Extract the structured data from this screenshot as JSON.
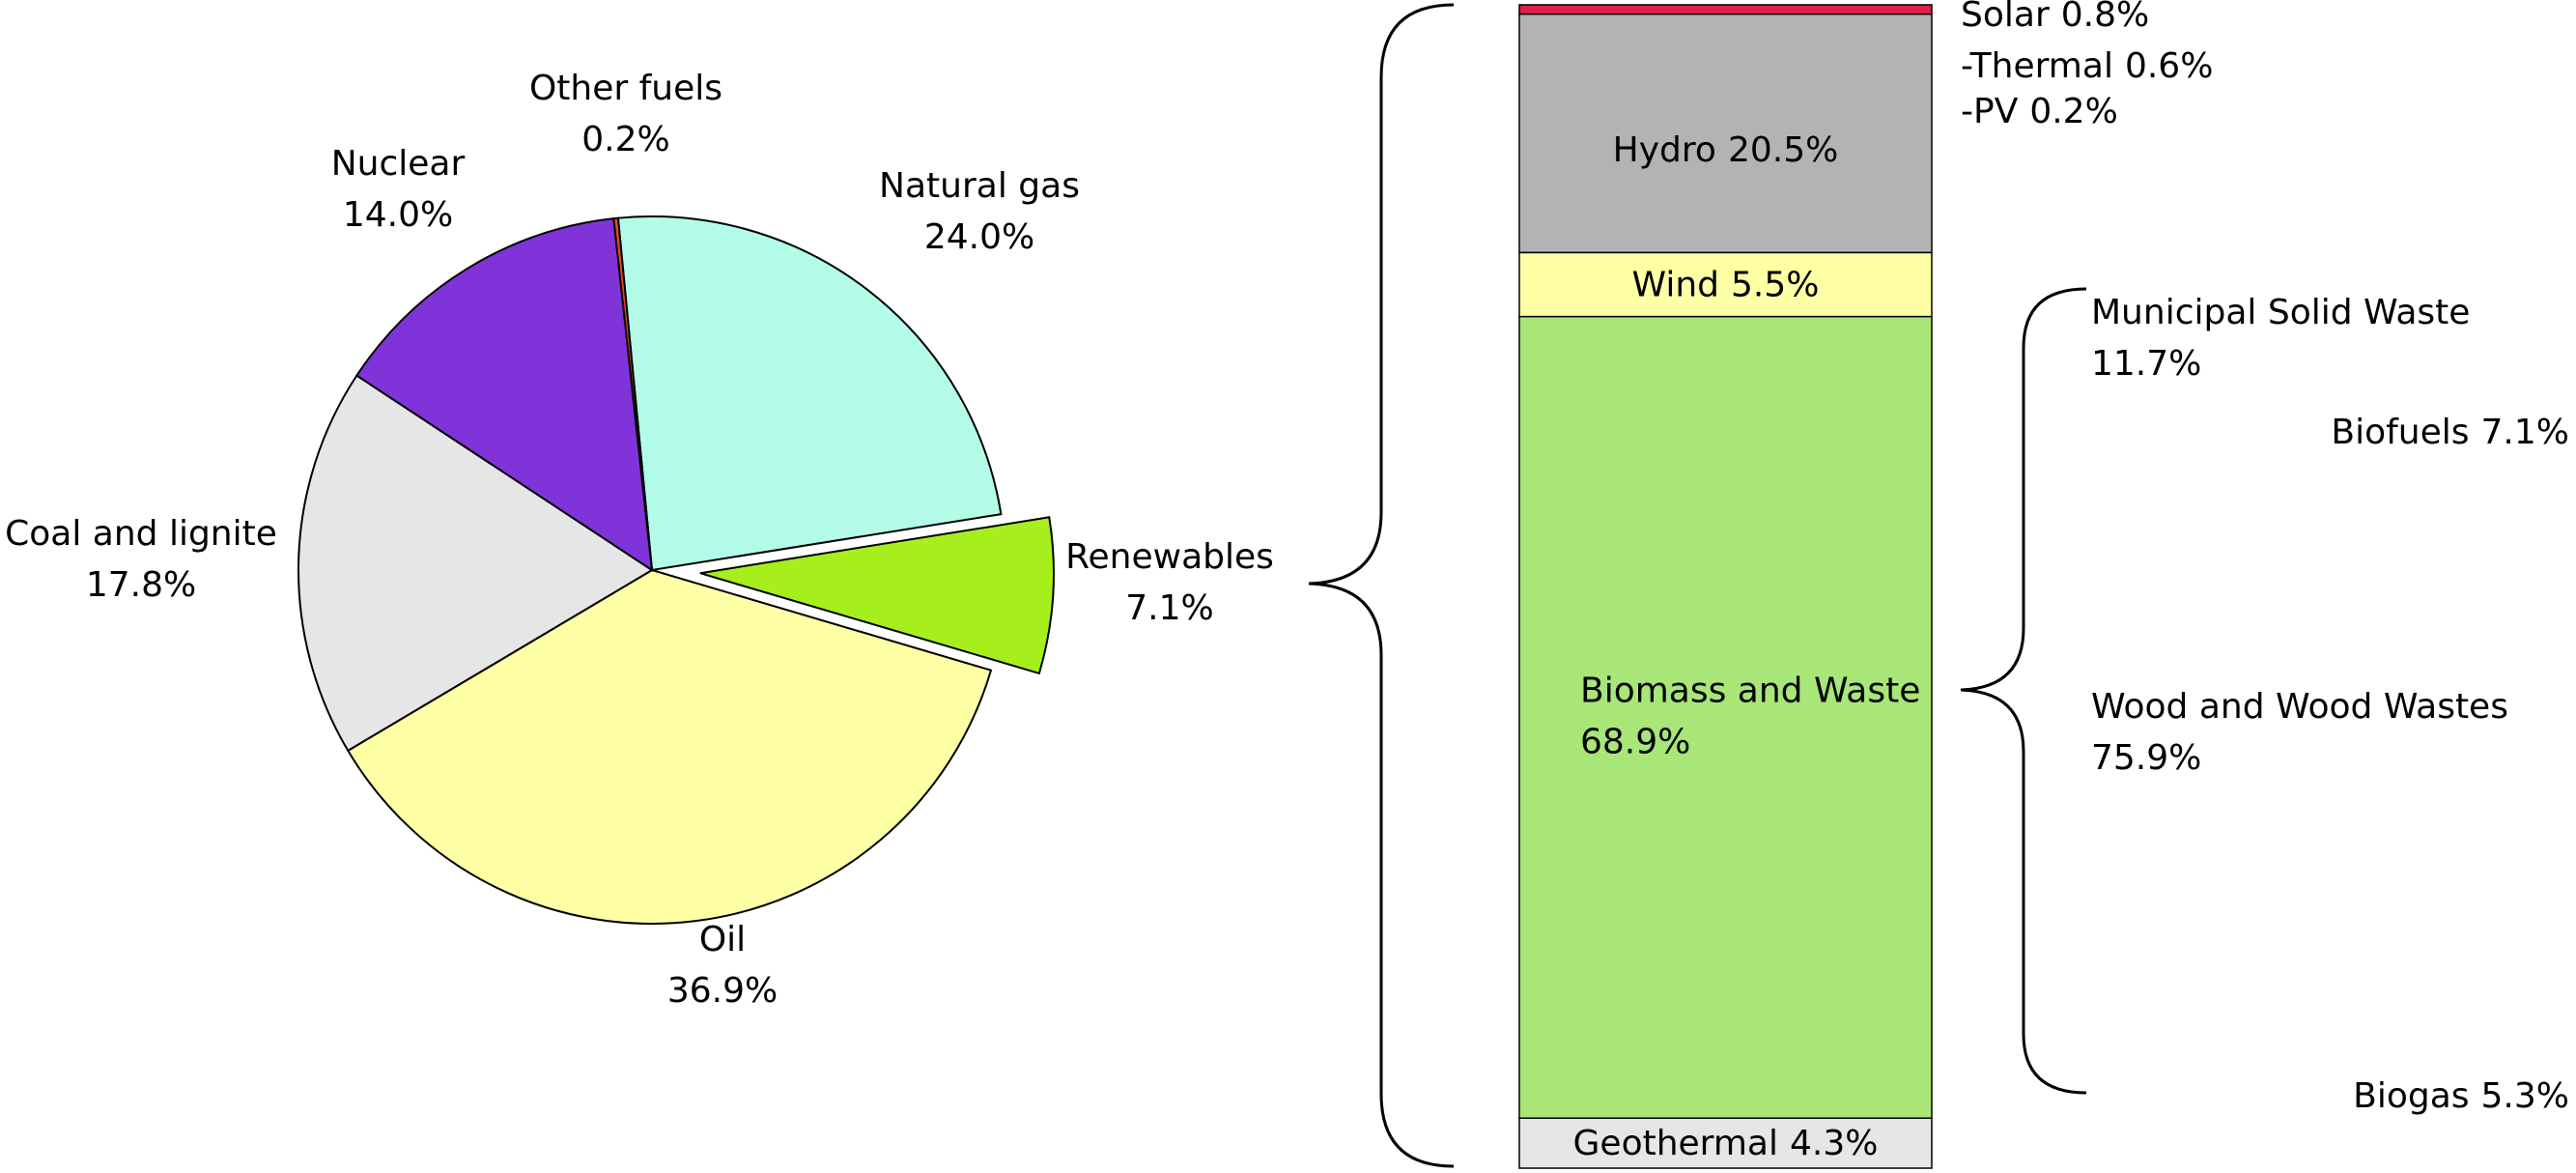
{
  "chart_data": [
    {
      "type": "pie",
      "categories": [
        "Natural gas",
        "Renewables",
        "Oil",
        "Coal and lignite",
        "Nuclear",
        "Other fuels"
      ],
      "values": [
        24.0,
        7.1,
        36.9,
        17.8,
        14.0,
        0.2
      ],
      "value_labels": [
        "24.0%",
        "7.1%",
        "36.9%",
        "17.8%",
        "14.0%",
        "0.2%"
      ],
      "colors": [
        "#b3fde8",
        "#a6ef1c",
        "#ffffa6",
        "#e6e6e6",
        "#8033d9",
        "#e64d1a"
      ],
      "explode": [
        false,
        true,
        false,
        false,
        false,
        false
      ]
    },
    {
      "type": "stacked_bar",
      "categories": [
        "Solar",
        "Hydro",
        "Wind",
        "Biomass and Waste",
        "Geothermal"
      ],
      "values": [
        0.8,
        20.5,
        5.5,
        68.9,
        4.3
      ],
      "value_labels": [
        "0.8%",
        "20.5%",
        "5.5%",
        "68.9%",
        "4.3%"
      ],
      "colors": [
        "#e0204a",
        "#b3b3b3",
        "#ffffa6",
        "#a8e678",
        "#e6e6e6"
      ],
      "ylim": [
        0,
        100
      ],
      "solar_breakdown": {
        "categories": [
          "-Thermal",
          "-PV"
        ],
        "values": [
          0.6,
          0.2
        ],
        "value_labels": [
          "0.6%",
          "0.2%"
        ]
      },
      "biomass_breakdown": {
        "categories": [
          "Municipal Solid Waste",
          "Biofuels",
          "Wood and Wood Wastes",
          "Biogas"
        ],
        "values": [
          11.7,
          7.1,
          75.9,
          5.3
        ],
        "value_labels": [
          "11.7%",
          "7.1%",
          "75.9%",
          "5.3%"
        ]
      }
    }
  ]
}
